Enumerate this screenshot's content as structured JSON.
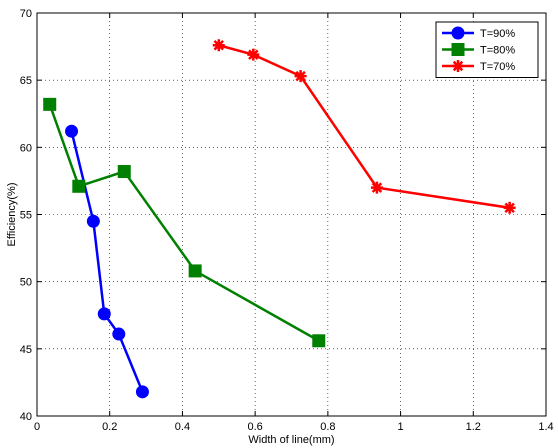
{
  "chart_data": {
    "type": "line",
    "title": "",
    "xlabel": "Width of line(mm)",
    "ylabel": "Efficiency(%)",
    "xlim": [
      0,
      1.4
    ],
    "ylim": [
      40,
      70
    ],
    "xticks": [
      0,
      0.2,
      0.4,
      0.6,
      0.8,
      1,
      1.2,
      1.4
    ],
    "xtick_labels": [
      "0",
      "0.2",
      "0.4",
      "0.6",
      "0.8",
      "1",
      "1.2",
      "1.4"
    ],
    "yticks": [
      40,
      45,
      50,
      55,
      60,
      65,
      70
    ],
    "ytick_labels": [
      "40",
      "45",
      "50",
      "55",
      "60",
      "65",
      "70"
    ],
    "grid": true,
    "legend_position": "top-right",
    "series": [
      {
        "name": "T=90%",
        "color": "#0000ff",
        "marker": "circle",
        "x": [
          0.095,
          0.155,
          0.185,
          0.225,
          0.29
        ],
        "y": [
          61.2,
          54.5,
          47.6,
          46.1,
          41.8
        ]
      },
      {
        "name": "T=80%",
        "color": "#008000",
        "marker": "square",
        "x": [
          0.035,
          0.115,
          0.24,
          0.435,
          0.775
        ],
        "y": [
          63.2,
          57.1,
          58.2,
          50.8,
          45.6
        ]
      },
      {
        "name": "T=70%",
        "color": "#ff0000",
        "marker": "asterisk",
        "x": [
          0.5,
          0.595,
          0.725,
          0.935,
          1.3
        ],
        "y": [
          67.6,
          66.9,
          65.3,
          57.0,
          55.5
        ]
      }
    ]
  }
}
